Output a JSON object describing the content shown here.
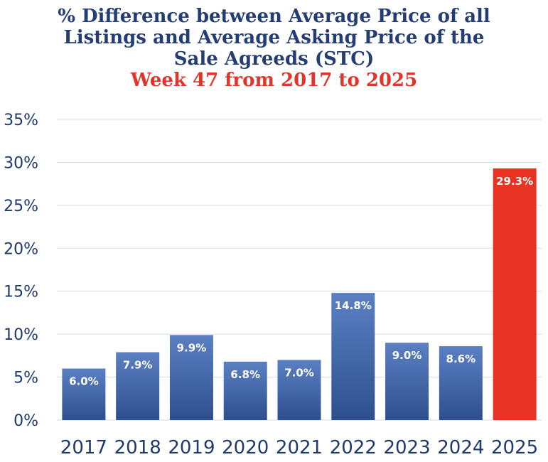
{
  "chart_data": {
    "type": "bar",
    "title": "% Difference between Average Price of all Listings and Average Asking Price of the Sale Agreeds (STC)",
    "title_lines": [
      "% Difference between Average Price of all",
      "Listings and Average Asking Price of the",
      "Sale Agreeds (STC)"
    ],
    "subtitle": "Week 47 from 2017 to 2025",
    "xlabel": "",
    "ylabel": "",
    "categories": [
      "2017",
      "2018",
      "2019",
      "2020",
      "2021",
      "2022",
      "2023",
      "2024",
      "2025"
    ],
    "values": [
      6.0,
      7.9,
      9.9,
      6.8,
      7.0,
      14.8,
      9.0,
      8.6,
      29.3
    ],
    "data_labels": [
      "6.0%",
      "7.9%",
      "9.9%",
      "6.8%",
      "7.0%",
      "14.8%",
      "9.0%",
      "8.6%",
      "29.3%"
    ],
    "ylim": [
      0,
      35
    ],
    "yticks": [
      0,
      5,
      10,
      15,
      20,
      25,
      30,
      35
    ],
    "ytick_labels": [
      "0%",
      "5%",
      "10%",
      "15%",
      "20%",
      "25%",
      "30%",
      "35%"
    ],
    "grid": true,
    "highlight_index": 8,
    "colors": {
      "bar_top": "#5b80c2",
      "bar_bottom": "#2e4f8f",
      "highlight": "#e83324",
      "title": "#243e73",
      "subtitle": "#e0352a",
      "axis_text": "#1f3a6b",
      "grid": "#d6dde8"
    }
  }
}
